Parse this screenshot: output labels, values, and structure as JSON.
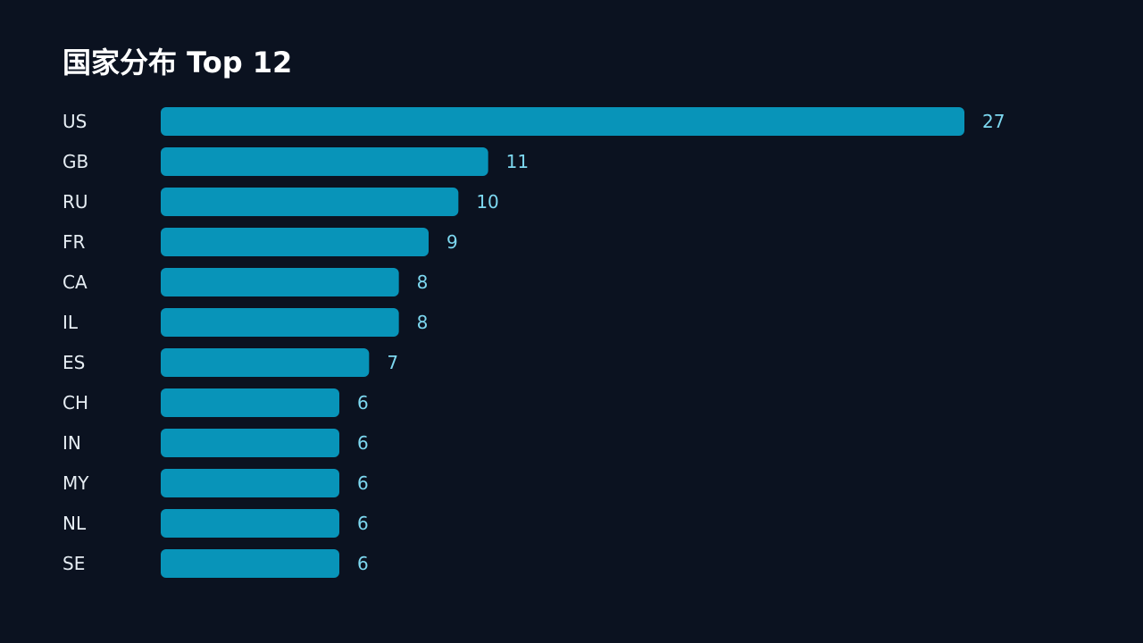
{
  "colors": {
    "background": "#0b1220",
    "bar": "#0894b9",
    "value_text": "#7dd8f0",
    "category_text": "#e6edf3",
    "title_text": "#ffffff"
  },
  "chart_data": {
    "type": "bar",
    "orientation": "horizontal",
    "title": "国家分布 Top 12",
    "xlabel": "",
    "ylabel": "",
    "xlim": [
      0,
      27
    ],
    "grid": false,
    "legend": "none",
    "categories": [
      "US",
      "GB",
      "RU",
      "FR",
      "CA",
      "IL",
      "ES",
      "CH",
      "IN",
      "MY",
      "NL",
      "SE"
    ],
    "values": [
      27,
      11,
      10,
      9,
      8,
      8,
      7,
      6,
      6,
      6,
      6,
      6
    ]
  }
}
